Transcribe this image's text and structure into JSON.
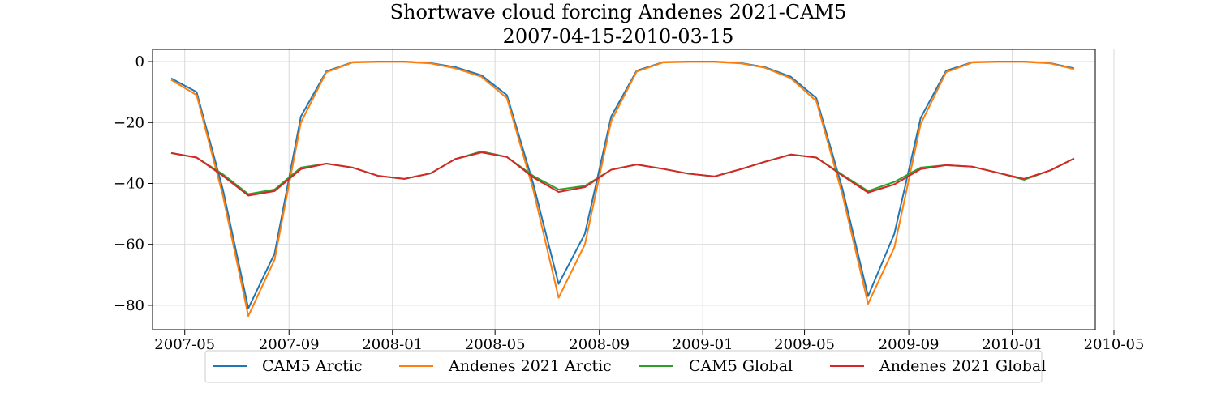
{
  "chart_data": {
    "type": "line",
    "title": "Shortwave cloud forcing Andenes 2021-CAM5",
    "subtitle": "2007-04-15-2010-03-15",
    "xlabel": "",
    "ylabel": "",
    "ylim": [
      -88,
      4
    ],
    "xlim": [
      "2007-03-24",
      "2010-04-09"
    ],
    "x_ticks": [
      "2007-05",
      "2007-09",
      "2008-01",
      "2008-05",
      "2008-09",
      "2009-01",
      "2009-05",
      "2009-09",
      "2010-01",
      "2010-05"
    ],
    "y_ticks": [
      0,
      -20,
      -40,
      -60,
      -80
    ],
    "grid": true,
    "legend_position": "bottom-center",
    "x": [
      "2007-04-15",
      "2007-05-15",
      "2007-06-15",
      "2007-07-15",
      "2007-08-15",
      "2007-09-15",
      "2007-10-15",
      "2007-11-15",
      "2007-12-15",
      "2008-01-15",
      "2008-02-15",
      "2008-03-15",
      "2008-04-15",
      "2008-05-15",
      "2008-06-15",
      "2008-07-15",
      "2008-08-15",
      "2008-09-15",
      "2008-10-15",
      "2008-11-15",
      "2008-12-15",
      "2009-01-15",
      "2009-02-15",
      "2009-03-15",
      "2009-04-15",
      "2009-05-15",
      "2009-06-15",
      "2009-07-15",
      "2009-08-15",
      "2009-09-15",
      "2009-10-15",
      "2009-11-15",
      "2009-12-15",
      "2010-01-15",
      "2010-02-15",
      "2010-03-15"
    ],
    "series": [
      {
        "name": "CAM5 Arctic",
        "color": "#1f77b4",
        "values": [
          -5.5,
          -10,
          -42,
          -81,
          -63,
          -18,
          -3.2,
          -0.2,
          0,
          0,
          -0.5,
          -1.8,
          -4.5,
          -11,
          -40,
          -73,
          -56.5,
          -18,
          -3,
          -0.2,
          0,
          0,
          -0.5,
          -1.8,
          -5,
          -12,
          -42,
          -77,
          -56.5,
          -18.5,
          -3,
          -0.2,
          0,
          0,
          -0.5,
          -2.2
        ]
      },
      {
        "name": "Andenes 2021 Arctic",
        "color": "#ff7f0e",
        "values": [
          -6,
          -11,
          -44,
          -83.5,
          -65,
          -20,
          -3.5,
          -0.3,
          -0.1,
          -0.1,
          -0.6,
          -2.2,
          -5,
          -12,
          -42,
          -77.5,
          -60,
          -19.5,
          -3.3,
          -0.3,
          -0.1,
          -0.1,
          -0.6,
          -2,
          -5.5,
          -13,
          -44,
          -79.5,
          -61,
          -20.5,
          -3.5,
          -0.3,
          -0.1,
          -0.1,
          -0.6,
          -2.5
        ]
      },
      {
        "name": "CAM5 Global",
        "color": "#2ca02c",
        "values": [
          -30,
          -31.5,
          -37,
          -43.5,
          -42,
          -34.8,
          -33.5,
          -34.8,
          -37.5,
          -38.5,
          -36.7,
          -32,
          -29.5,
          -31.3,
          -37.5,
          -42,
          -40.8,
          -35.5,
          -33.8,
          -35.2,
          -36.8,
          -37.7,
          -35.3,
          -32.9,
          -30.5,
          -31.5,
          -37.2,
          -42.5,
          -39.5,
          -34.8,
          -34,
          -34.5,
          -36.5,
          -38.8,
          -35.7,
          -31.8
        ]
      },
      {
        "name": "Andenes 2021 Global",
        "color": "#d62728",
        "values": [
          -30,
          -31.5,
          -37.5,
          -44,
          -42.5,
          -35.3,
          -33.5,
          -34.8,
          -37.5,
          -38.5,
          -36.7,
          -32,
          -29.8,
          -31.3,
          -38,
          -42.8,
          -41.2,
          -35.5,
          -33.8,
          -35.2,
          -36.8,
          -37.7,
          -35.3,
          -32.9,
          -30.5,
          -31.5,
          -37.5,
          -43,
          -40.3,
          -35.3,
          -34,
          -34.5,
          -36.5,
          -38.5,
          -35.7,
          -31.8
        ]
      }
    ]
  }
}
